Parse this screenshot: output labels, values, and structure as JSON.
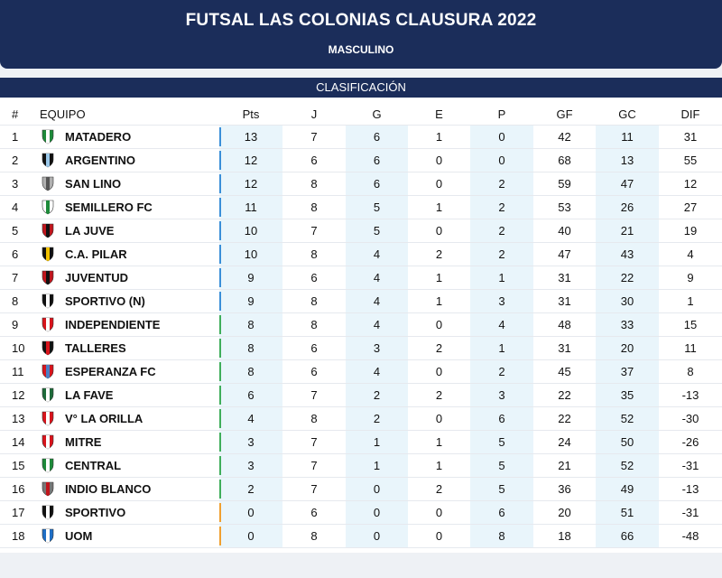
{
  "header": {
    "title": "FUTSAL LAS COLONIAS CLAUSURA 2022",
    "subtitle": "MASCULINO"
  },
  "section_title": "CLASIFICACIÓN",
  "columns": [
    "#",
    "EQUIPO",
    "Pts",
    "J",
    "G",
    "E",
    "P",
    "GF",
    "GC",
    "DIF"
  ],
  "zone_colors": {
    "blue": "#3a8fd8",
    "green": "#3fae5a",
    "orange": "#f0a030"
  },
  "rows": [
    {
      "pos": "1",
      "team": "MATADERO",
      "pts": "13",
      "j": "7",
      "g": "6",
      "e": "1",
      "p": "0",
      "gf": "42",
      "gc": "11",
      "dif": "31",
      "zone": "blue",
      "shield": "matadero-shield-icon",
      "c1": "#1e8a3a",
      "c2": "#ffffff"
    },
    {
      "pos": "2",
      "team": "ARGENTINO",
      "pts": "12",
      "j": "6",
      "g": "6",
      "e": "0",
      "p": "0",
      "gf": "68",
      "gc": "13",
      "dif": "55",
      "zone": "blue",
      "shield": "argentino-shield-icon",
      "c1": "#111111",
      "c2": "#9cc9ea"
    },
    {
      "pos": "3",
      "team": "SAN LINO",
      "pts": "12",
      "j": "8",
      "g": "6",
      "e": "0",
      "p": "2",
      "gf": "59",
      "gc": "47",
      "dif": "12",
      "zone": "blue",
      "shield": "san-lino-shield-icon",
      "c1": "#b0b0b0",
      "c2": "#555555"
    },
    {
      "pos": "4",
      "team": "SEMILLERO FC",
      "pts": "11",
      "j": "8",
      "g": "5",
      "e": "1",
      "p": "2",
      "gf": "53",
      "gc": "26",
      "dif": "27",
      "zone": "blue",
      "shield": "semillero-shield-icon",
      "c1": "#ffffff",
      "c2": "#1e8a3a"
    },
    {
      "pos": "5",
      "team": "LA JUVE",
      "pts": "10",
      "j": "7",
      "g": "5",
      "e": "0",
      "p": "2",
      "gf": "40",
      "gc": "21",
      "dif": "19",
      "zone": "blue",
      "shield": "la-juve-shield-icon",
      "c1": "#c0151c",
      "c2": "#111111"
    },
    {
      "pos": "6",
      "team": "C.A. PILAR",
      "pts": "10",
      "j": "8",
      "g": "4",
      "e": "2",
      "p": "2",
      "gf": "47",
      "gc": "43",
      "dif": "4",
      "zone": "blue",
      "shield": "pilar-shield-icon",
      "c1": "#111111",
      "c2": "#f2c200"
    },
    {
      "pos": "7",
      "team": "JUVENTUD",
      "pts": "9",
      "j": "6",
      "g": "4",
      "e": "1",
      "p": "1",
      "gf": "31",
      "gc": "22",
      "dif": "9",
      "zone": "blue",
      "shield": "juventud-shield-icon",
      "c1": "#c0151c",
      "c2": "#111111"
    },
    {
      "pos": "8",
      "team": "SPORTIVO (N)",
      "pts": "9",
      "j": "8",
      "g": "4",
      "e": "1",
      "p": "3",
      "gf": "31",
      "gc": "30",
      "dif": "1",
      "zone": "blue",
      "shield": "sportivo-n-shield-icon",
      "c1": "#111111",
      "c2": "#ffffff"
    },
    {
      "pos": "9",
      "team": "INDEPENDIENTE",
      "pts": "8",
      "j": "8",
      "g": "4",
      "e": "0",
      "p": "4",
      "gf": "48",
      "gc": "33",
      "dif": "15",
      "zone": "green",
      "shield": "independiente-shield-icon",
      "c1": "#d8141c",
      "c2": "#ffffff"
    },
    {
      "pos": "10",
      "team": "TALLERES",
      "pts": "8",
      "j": "6",
      "g": "3",
      "e": "2",
      "p": "1",
      "gf": "31",
      "gc": "20",
      "dif": "11",
      "zone": "green",
      "shield": "talleres-shield-icon",
      "c1": "#111111",
      "c2": "#d8141c"
    },
    {
      "pos": "11",
      "team": "ESPERANZA FC",
      "pts": "8",
      "j": "6",
      "g": "4",
      "e": "0",
      "p": "2",
      "gf": "45",
      "gc": "37",
      "dif": "8",
      "zone": "green",
      "shield": "esperanza-shield-icon",
      "c1": "#d8141c",
      "c2": "#4a7fc4"
    },
    {
      "pos": "12",
      "team": "LA FAVE",
      "pts": "6",
      "j": "7",
      "g": "2",
      "e": "2",
      "p": "3",
      "gf": "22",
      "gc": "35",
      "dif": "-13",
      "zone": "green",
      "shield": "la-fave-shield-icon",
      "c1": "#1e6b3a",
      "c2": "#ffffff"
    },
    {
      "pos": "13",
      "team": "V° LA ORILLA",
      "pts": "4",
      "j": "8",
      "g": "2",
      "e": "0",
      "p": "6",
      "gf": "22",
      "gc": "52",
      "dif": "-30",
      "zone": "green",
      "shield": "la-orilla-shield-icon",
      "c1": "#d8141c",
      "c2": "#ffffff"
    },
    {
      "pos": "14",
      "team": "MITRE",
      "pts": "3",
      "j": "7",
      "g": "1",
      "e": "1",
      "p": "5",
      "gf": "24",
      "gc": "50",
      "dif": "-26",
      "zone": "green",
      "shield": "mitre-shield-icon",
      "c1": "#d8141c",
      "c2": "#ffffff"
    },
    {
      "pos": "15",
      "team": "CENTRAL",
      "pts": "3",
      "j": "7",
      "g": "1",
      "e": "1",
      "p": "5",
      "gf": "21",
      "gc": "52",
      "dif": "-31",
      "zone": "green",
      "shield": "central-shield-icon",
      "c1": "#1e8a3a",
      "c2": "#ffffff"
    },
    {
      "pos": "16",
      "team": "INDIO BLANCO",
      "pts": "2",
      "j": "7",
      "g": "0",
      "e": "2",
      "p": "5",
      "gf": "36",
      "gc": "49",
      "dif": "-13",
      "zone": "green",
      "shield": "indio-blanco-shield-icon",
      "c1": "#777777",
      "c2": "#c0151c"
    },
    {
      "pos": "17",
      "team": "SPORTIVO",
      "pts": "0",
      "j": "6",
      "g": "0",
      "e": "0",
      "p": "6",
      "gf": "20",
      "gc": "51",
      "dif": "-31",
      "zone": "orange",
      "shield": "sportivo-shield-icon",
      "c1": "#111111",
      "c2": "#ffffff"
    },
    {
      "pos": "18",
      "team": "UOM",
      "pts": "0",
      "j": "8",
      "g": "0",
      "e": "0",
      "p": "8",
      "gf": "18",
      "gc": "66",
      "dif": "-48",
      "zone": "orange",
      "shield": "uom-shield-icon",
      "c1": "#1f6fc6",
      "c2": "#ffffff"
    }
  ]
}
